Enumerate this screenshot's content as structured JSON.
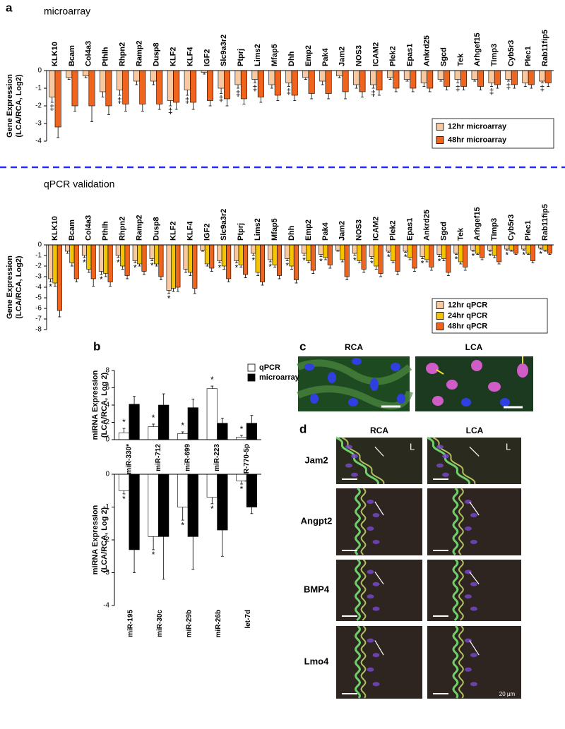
{
  "panel_labels": [
    "a",
    "b",
    "c",
    "d"
  ],
  "chart_data": [
    {
      "type": "bar",
      "title": "microarray",
      "y_label": [
        "Gene Expression",
        "(LCA/RCA, Log2)"
      ],
      "categories": [
        "KLK10",
        "Bcam",
        "Col4a3",
        "Pthlh",
        "Rhpn2",
        "Ramp2",
        "Dusp8",
        "KLF2",
        "KLF4",
        "IGF2",
        "Slc9a3r2",
        "Ptprj",
        "Lims2",
        "Mfap5",
        "Dhh",
        "Emp2",
        "Pak4",
        "Jam2",
        "NOS3",
        "ICAM2",
        "Plek2",
        "Epas1",
        "Ankrd25",
        "Sgcd",
        "Tek",
        "Arhgef15",
        "Timp3",
        "Cyb5r3",
        "Plec1",
        "Rab11fip5"
      ],
      "series": [
        {
          "name": "12hr microarray",
          "color": "#f8c9a0",
          "values": [
            -1.5,
            -0.4,
            -0.3,
            -1.2,
            -1.1,
            -0.6,
            -0.6,
            -1.7,
            -1.1,
            -0.1,
            -1.0,
            -0.8,
            -0.5,
            -0.8,
            -0.7,
            -0.4,
            -0.6,
            -0.3,
            -0.8,
            -0.8,
            -0.4,
            -0.5,
            -0.7,
            -0.5,
            -0.5,
            -0.5,
            -0.7,
            -0.5,
            -0.7,
            -0.6
          ],
          "errors": [
            0.3,
            0.1,
            0.1,
            0.3,
            0.3,
            0.2,
            0.2,
            0.3,
            0.3,
            0.1,
            0.3,
            0.2,
            0.2,
            0.2,
            0.2,
            0.1,
            0.2,
            0.1,
            0.2,
            0.2,
            0.1,
            0.1,
            0.2,
            0.1,
            0.2,
            0.1,
            0.2,
            0.1,
            0.2,
            0.1
          ]
        },
        {
          "name": "48hr microarray",
          "color": "#f0651e",
          "values": [
            -3.2,
            -2.0,
            -2.0,
            -2.0,
            -1.9,
            -1.9,
            -1.9,
            -1.8,
            -1.8,
            -1.7,
            -1.6,
            -1.6,
            -1.5,
            -1.4,
            -1.4,
            -1.3,
            -1.3,
            -1.2,
            -1.2,
            -1.1,
            -1.0,
            -1.0,
            -1.0,
            -0.9,
            -0.9,
            -0.9,
            -0.8,
            -0.8,
            -0.8,
            -0.7
          ],
          "errors": [
            0.6,
            0.3,
            0.9,
            0.5,
            0.4,
            0.4,
            0.3,
            0.4,
            0.4,
            0.3,
            0.4,
            0.3,
            0.3,
            0.3,
            0.3,
            0.3,
            0.3,
            0.4,
            0.3,
            0.3,
            0.2,
            0.2,
            0.2,
            0.2,
            0.2,
            0.2,
            0.2,
            0.2,
            0.2,
            0.2
          ]
        }
      ],
      "markers": [
        "‡",
        null,
        null,
        null,
        "‡",
        null,
        null,
        "‡",
        "‡",
        null,
        "‡",
        "‡",
        "‡",
        null,
        "‡",
        null,
        null,
        null,
        null,
        "‡",
        null,
        null,
        null,
        null,
        "‡",
        null,
        "‡",
        "‡",
        null,
        "‡"
      ],
      "ylim": [
        -4,
        0
      ],
      "yticks": [
        0,
        -1,
        -2,
        -3,
        -4
      ],
      "legend": "lower right"
    },
    {
      "type": "bar",
      "title": "qPCR validation",
      "y_label": [
        "Gene Expression",
        "(LCA/RCA, Log2)"
      ],
      "categories": [
        "KLK10",
        "Bcam",
        "Col4a3",
        "Pthlh",
        "Rhpn2",
        "Ramp2",
        "Dusp8",
        "KLF2",
        "KLF4",
        "IGF2",
        "Slc9a3r2",
        "Ptprj",
        "Lims2",
        "Mfap5",
        "Dhh",
        "Emp2",
        "Pak4",
        "Jam2",
        "NOS3",
        "ICAM2",
        "Plek2",
        "Epas1",
        "Ankrd25",
        "Sgcd",
        "Tek",
        "Arhgef15",
        "Timp3",
        "Cyb5r3",
        "Plec1",
        "Rab11fip5"
      ],
      "series": [
        {
          "name": "12hr qPCR",
          "color": "#f8c9a0",
          "values": [
            -3.2,
            -0.6,
            -1.0,
            -2.5,
            -1.0,
            -1.5,
            -1.3,
            -4.3,
            -2.3,
            -0.5,
            -1.5,
            -1.5,
            -0.8,
            -1.4,
            -1.3,
            -0.8,
            -0.9,
            -0.5,
            -0.8,
            -1.1,
            -0.6,
            -0.6,
            -1.1,
            -0.9,
            -0.8,
            -0.5,
            -0.5,
            -0.4,
            -0.4,
            -0.3
          ],
          "errors": [
            0.3,
            0.2,
            0.2,
            0.3,
            0.2,
            0.2,
            0.2,
            0.3,
            0.3,
            0.1,
            0.2,
            0.2,
            0.2,
            0.2,
            0.2,
            0.2,
            0.2,
            0.1,
            0.2,
            0.2,
            0.1,
            0.1,
            0.2,
            0.2,
            0.1,
            0.1,
            0.1,
            0.1,
            0.1,
            0.1
          ]
        },
        {
          "name": "24hr qPCR",
          "color": "#f5c400",
          "values": [
            -3.6,
            -1.7,
            -2.3,
            -2.7,
            -2.0,
            -1.8,
            -1.8,
            -4.1,
            -2.6,
            -1.8,
            -2.0,
            -1.9,
            -2.6,
            -1.9,
            -2.0,
            -1.5,
            -1.2,
            -1.4,
            -1.5,
            -2.0,
            -1.5,
            -1.2,
            -1.4,
            -1.3,
            -1.6,
            -0.8,
            -1.0,
            -0.5,
            -0.8,
            -0.5
          ],
          "errors": [
            0.3,
            0.3,
            0.3,
            0.3,
            0.3,
            0.2,
            0.2,
            0.3,
            0.3,
            0.2,
            0.3,
            0.2,
            0.3,
            0.2,
            0.3,
            0.2,
            0.2,
            0.2,
            0.2,
            0.3,
            0.2,
            0.2,
            0.2,
            0.2,
            0.2,
            0.1,
            0.2,
            0.1,
            0.1,
            0.1
          ]
        },
        {
          "name": "48hr qPCR",
          "color": "#f0651e",
          "values": [
            -6.2,
            -3.2,
            -3.2,
            -3.5,
            -2.9,
            -2.5,
            -3.0,
            -4.0,
            -4.1,
            -2.2,
            -3.2,
            -2.8,
            -3.5,
            -2.9,
            -3.3,
            -2.4,
            -1.9,
            -3.0,
            -2.3,
            -2.7,
            -2.5,
            -2.2,
            -2.1,
            -2.6,
            -2.1,
            -1.2,
            -1.6,
            -0.8,
            -1.5,
            -0.8
          ],
          "errors": [
            0.6,
            0.3,
            0.7,
            0.4,
            0.3,
            0.3,
            0.3,
            0.4,
            0.5,
            0.3,
            0.3,
            0.3,
            0.3,
            0.3,
            0.3,
            0.3,
            0.3,
            0.3,
            0.3,
            0.3,
            0.3,
            0.3,
            0.3,
            0.3,
            0.3,
            0.2,
            0.2,
            0.1,
            0.2,
            0.1
          ]
        }
      ],
      "markers": [
        "*",
        null,
        "*",
        "*",
        "*",
        "*",
        "*",
        "*",
        null,
        null,
        "*",
        "*",
        "*",
        "*",
        "*",
        "*",
        "*",
        null,
        "*",
        "*",
        "*",
        "*",
        "*",
        "*",
        "*",
        "*",
        "*",
        "*",
        "*",
        "*"
      ],
      "ylim": [
        -8,
        0
      ],
      "yticks": [
        0,
        -1,
        -2,
        -3,
        -4,
        -5,
        -6,
        -7,
        -8
      ],
      "legend": "lower right"
    },
    {
      "type": "bar",
      "y_label": [
        "miRNA Expression",
        "(LCA/RCA, Log 2)"
      ],
      "categories": [
        "miR-330*",
        "miR-712",
        "miR-699",
        "miR-223",
        "miR-770-5p"
      ],
      "series": [
        {
          "name": "qPCR",
          "color": "#ffffff",
          "values": [
            0.8,
            1.5,
            0.7,
            5.9,
            0.3
          ],
          "errors": [
            0.5,
            0.3,
            0.2,
            0.3,
            0.2
          ]
        },
        {
          "name": "microarray",
          "color": "#000000",
          "values": [
            4.1,
            4.0,
            3.7,
            1.9,
            1.9
          ],
          "errors": [
            0.9,
            1.3,
            1.0,
            0.6,
            0.9
          ]
        }
      ],
      "markers": [
        "*",
        "*",
        "*",
        "*",
        "*"
      ],
      "ylim": [
        0,
        8
      ],
      "yticks": [
        0,
        2,
        4,
        6,
        8
      ],
      "legend": "upper right"
    },
    {
      "type": "bar",
      "y_label": [
        "miRNA Expression",
        "(LCA/RCA, Log 2)"
      ],
      "categories": [
        "miR-195",
        "miR-30c",
        "miR-29b",
        "miR-26b",
        "let-7d"
      ],
      "series": [
        {
          "name": "qPCR",
          "color": "#ffffff",
          "values": [
            -0.5,
            -1.9,
            -1.0,
            -0.7,
            -0.2
          ],
          "errors": [
            0.1,
            0.4,
            0.4,
            0.2,
            0.1
          ]
        },
        {
          "name": "microarray",
          "color": "#000000",
          "values": [
            -2.3,
            -1.9,
            -1.9,
            -1.7,
            -1.0
          ],
          "errors": [
            0.7,
            1.3,
            1.0,
            0.8,
            0.2
          ]
        }
      ],
      "markers": [
        "*",
        "*",
        "*",
        "*",
        "*"
      ],
      "ylim": [
        -4,
        0
      ],
      "yticks": [
        0,
        -1,
        -2,
        -3,
        -4
      ]
    }
  ],
  "panel_c": {
    "headers": [
      "RCA",
      "LCA"
    ]
  },
  "panel_d": {
    "headers": [
      "RCA",
      "LCA"
    ],
    "rows": [
      "Jam2",
      "Angpt2",
      "BMP4",
      "Lmo4"
    ],
    "lumen_labels": [
      "L",
      "L"
    ],
    "scale_label": "20 µm"
  }
}
